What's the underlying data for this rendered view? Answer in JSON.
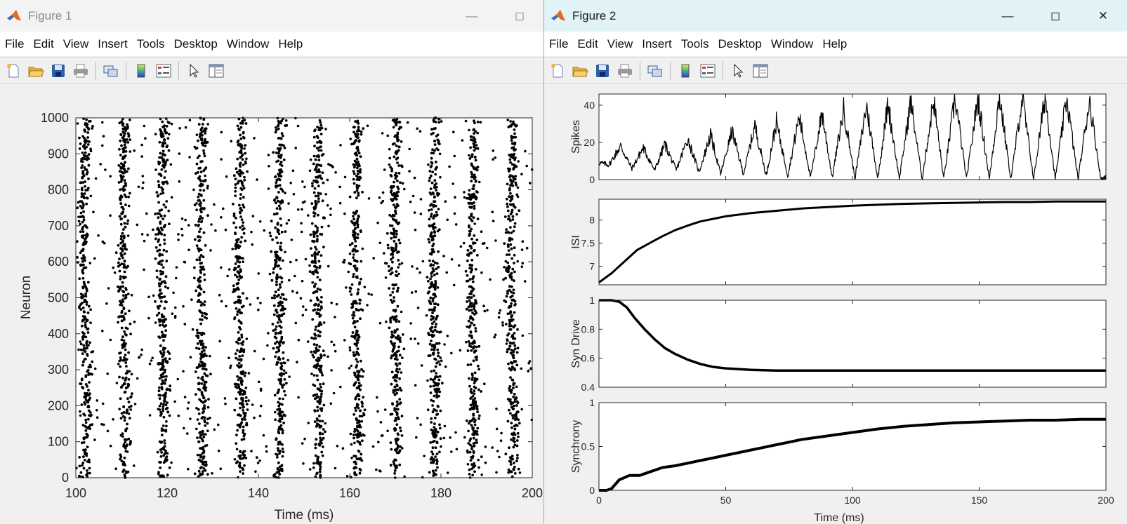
{
  "figure1": {
    "title": "Figure 1",
    "window_buttons": [
      "minimize-icon",
      "maximize-icon"
    ],
    "menu": [
      "File",
      "Edit",
      "View",
      "Insert",
      "Tools",
      "Desktop",
      "Window",
      "Help"
    ],
    "toolbar_icons": [
      "new-figure-icon",
      "open-file-icon",
      "save-icon",
      "print-icon",
      "link-plot-icon",
      "colorbar-icon",
      "legend-icon",
      "edit-plot-icon",
      "property-inspector-icon"
    ]
  },
  "figure2": {
    "title": "Figure 2",
    "window_buttons": [
      "minimize-icon",
      "maximize-icon",
      "close-icon"
    ],
    "menu": [
      "File",
      "Edit",
      "View",
      "Insert",
      "Tools",
      "Desktop",
      "Window",
      "Help"
    ],
    "toolbar_icons": [
      "new-figure-icon",
      "open-file-icon",
      "save-icon",
      "print-icon",
      "link-plot-icon",
      "colorbar-icon",
      "legend-icon",
      "edit-plot-icon",
      "property-inspector-icon"
    ]
  },
  "chart_data": [
    {
      "type": "scatter",
      "title": "",
      "xlabel": "Time (ms)",
      "ylabel": "Neuron",
      "xlim": [
        100,
        200
      ],
      "ylim": [
        0,
        1000
      ],
      "xticks": [
        100,
        120,
        140,
        160,
        180,
        200
      ],
      "yticks": [
        0,
        100,
        200,
        300,
        400,
        500,
        600,
        700,
        800,
        900,
        1000
      ],
      "grid": false,
      "marker_color": "#000000",
      "burst_centers_ms": [
        102,
        110.5,
        119,
        127.5,
        136,
        144.5,
        153,
        161.5,
        170,
        178.5,
        187,
        195.5
      ],
      "burst_width_ms": 1.1,
      "spikes_per_burst": 320,
      "background_spikes": 700
    },
    {
      "type": "line",
      "title": "",
      "xlabel": "",
      "ylabel": "Spikes",
      "xlim": [
        0,
        200
      ],
      "ylim": [
        0,
        46
      ],
      "yticks": [
        0,
        20,
        40
      ],
      "series": [
        {
          "x": [
            0,
            4,
            8.5,
            13,
            17.5,
            22,
            26,
            30.5,
            35,
            39.5,
            44,
            48,
            52.5,
            57,
            61.5,
            66,
            70,
            74.5,
            79,
            83.5,
            88,
            92,
            96.5,
            101,
            105.5,
            110,
            114,
            118.5,
            123,
            127.5,
            132,
            136,
            140.5,
            145,
            149.5,
            154,
            158,
            162.5,
            167,
            171.5,
            176,
            180,
            184.5,
            189,
            193.5,
            198,
            200
          ],
          "y": [
            9,
            8,
            18,
            6,
            17,
            5,
            19,
            5,
            22,
            4,
            24,
            3,
            26,
            3,
            29,
            2,
            31,
            2,
            34,
            1,
            36,
            1,
            38,
            0.5,
            40,
            0.5,
            41,
            0.3,
            42,
            0.3,
            43,
            0.2,
            44,
            0.2,
            44,
            0.2,
            45,
            0.2,
            44,
            0.2,
            45,
            0.2,
            44,
            0.2,
            43,
            0.2,
            1
          ]
        }
      ]
    },
    {
      "type": "line",
      "title": "",
      "xlabel": "",
      "ylabel": "ISI",
      "xlim": [
        0,
        200
      ],
      "ylim": [
        6.6,
        8.45
      ],
      "yticks": [
        7,
        7.5,
        8
      ],
      "series": [
        {
          "x": [
            0,
            5,
            10,
            15,
            20,
            25,
            30,
            35,
            40,
            50,
            60,
            70,
            80,
            90,
            100,
            110,
            120,
            130,
            140,
            150,
            160,
            170,
            180,
            190,
            200
          ],
          "y": [
            6.65,
            6.85,
            7.1,
            7.35,
            7.5,
            7.65,
            7.78,
            7.88,
            7.97,
            8.08,
            8.15,
            8.2,
            8.25,
            8.28,
            8.31,
            8.33,
            8.35,
            8.36,
            8.37,
            8.38,
            8.39,
            8.39,
            8.4,
            8.4,
            8.4
          ]
        }
      ]
    },
    {
      "type": "line",
      "title": "",
      "xlabel": "",
      "ylabel": "Syn Drive",
      "xlim": [
        0,
        200
      ],
      "ylim": [
        0.4,
        1
      ],
      "yticks": [
        0.4,
        0.6,
        0.8,
        1
      ],
      "series": [
        {
          "x": [
            0,
            5,
            8,
            11,
            14,
            18,
            22,
            26,
            30,
            35,
            40,
            45,
            50,
            60,
            70,
            80,
            100,
            120,
            140,
            160,
            180,
            200
          ],
          "y": [
            1,
            1,
            0.99,
            0.95,
            0.88,
            0.8,
            0.73,
            0.67,
            0.63,
            0.59,
            0.56,
            0.54,
            0.53,
            0.52,
            0.515,
            0.515,
            0.515,
            0.515,
            0.515,
            0.515,
            0.515,
            0.515
          ]
        }
      ]
    },
    {
      "type": "line",
      "title": "",
      "xlabel": "Time (ms)",
      "ylabel": "Synchrony",
      "xlim": [
        0,
        200
      ],
      "ylim": [
        0,
        1
      ],
      "xticks": [
        0,
        50,
        100,
        150,
        200
      ],
      "yticks": [
        0,
        0.5,
        1
      ],
      "series": [
        {
          "x": [
            0,
            3,
            5,
            8,
            12,
            16,
            20,
            25,
            30,
            35,
            40,
            45,
            50,
            55,
            60,
            65,
            70,
            75,
            80,
            90,
            100,
            110,
            120,
            130,
            140,
            150,
            160,
            170,
            180,
            190,
            200
          ],
          "y": [
            0,
            0,
            0.02,
            0.12,
            0.17,
            0.17,
            0.21,
            0.26,
            0.28,
            0.31,
            0.34,
            0.37,
            0.4,
            0.43,
            0.46,
            0.49,
            0.52,
            0.55,
            0.58,
            0.62,
            0.66,
            0.7,
            0.73,
            0.75,
            0.77,
            0.78,
            0.79,
            0.8,
            0.8,
            0.81,
            0.81
          ]
        }
      ]
    }
  ]
}
